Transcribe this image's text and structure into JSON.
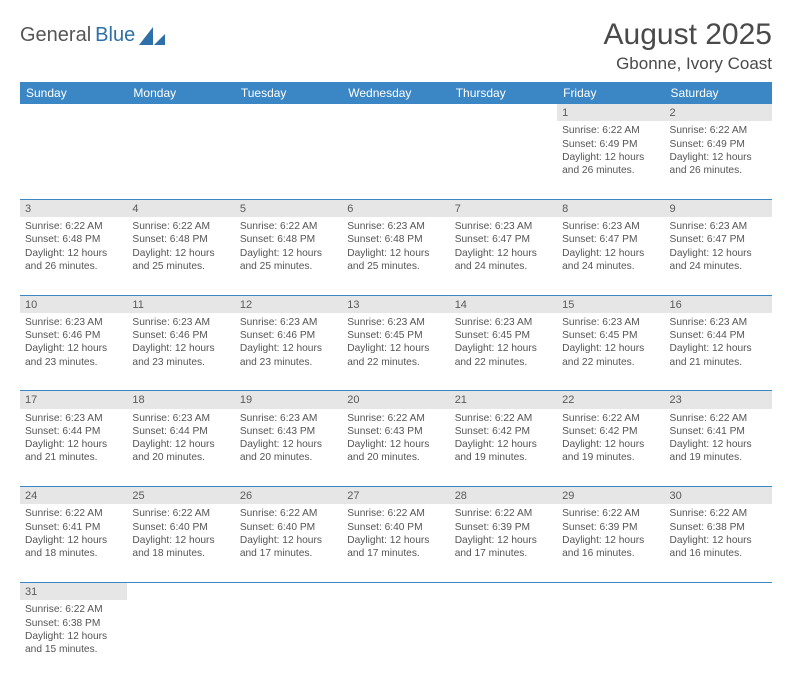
{
  "logo": {
    "part1": "General",
    "part2": "Blue"
  },
  "header": {
    "month_title": "August 2025",
    "location": "Gbonne, Ivory Coast"
  },
  "colors": {
    "header_bg": "#3b86c4",
    "header_text": "#ffffff",
    "daynum_bg": "#e6e6e6",
    "border": "#3b86c4",
    "body_text": "#555555",
    "logo_accent": "#2e6fa8"
  },
  "day_headers": [
    "Sunday",
    "Monday",
    "Tuesday",
    "Wednesday",
    "Thursday",
    "Friday",
    "Saturday"
  ],
  "weeks": [
    {
      "days": [
        null,
        null,
        null,
        null,
        null,
        {
          "n": "1",
          "sunrise": "Sunrise: 6:22 AM",
          "sunset": "Sunset: 6:49 PM",
          "dl1": "Daylight: 12 hours",
          "dl2": "and 26 minutes."
        },
        {
          "n": "2",
          "sunrise": "Sunrise: 6:22 AM",
          "sunset": "Sunset: 6:49 PM",
          "dl1": "Daylight: 12 hours",
          "dl2": "and 26 minutes."
        }
      ]
    },
    {
      "days": [
        {
          "n": "3",
          "sunrise": "Sunrise: 6:22 AM",
          "sunset": "Sunset: 6:48 PM",
          "dl1": "Daylight: 12 hours",
          "dl2": "and 26 minutes."
        },
        {
          "n": "4",
          "sunrise": "Sunrise: 6:22 AM",
          "sunset": "Sunset: 6:48 PM",
          "dl1": "Daylight: 12 hours",
          "dl2": "and 25 minutes."
        },
        {
          "n": "5",
          "sunrise": "Sunrise: 6:22 AM",
          "sunset": "Sunset: 6:48 PM",
          "dl1": "Daylight: 12 hours",
          "dl2": "and 25 minutes."
        },
        {
          "n": "6",
          "sunrise": "Sunrise: 6:23 AM",
          "sunset": "Sunset: 6:48 PM",
          "dl1": "Daylight: 12 hours",
          "dl2": "and 25 minutes."
        },
        {
          "n": "7",
          "sunrise": "Sunrise: 6:23 AM",
          "sunset": "Sunset: 6:47 PM",
          "dl1": "Daylight: 12 hours",
          "dl2": "and 24 minutes."
        },
        {
          "n": "8",
          "sunrise": "Sunrise: 6:23 AM",
          "sunset": "Sunset: 6:47 PM",
          "dl1": "Daylight: 12 hours",
          "dl2": "and 24 minutes."
        },
        {
          "n": "9",
          "sunrise": "Sunrise: 6:23 AM",
          "sunset": "Sunset: 6:47 PM",
          "dl1": "Daylight: 12 hours",
          "dl2": "and 24 minutes."
        }
      ]
    },
    {
      "days": [
        {
          "n": "10",
          "sunrise": "Sunrise: 6:23 AM",
          "sunset": "Sunset: 6:46 PM",
          "dl1": "Daylight: 12 hours",
          "dl2": "and 23 minutes."
        },
        {
          "n": "11",
          "sunrise": "Sunrise: 6:23 AM",
          "sunset": "Sunset: 6:46 PM",
          "dl1": "Daylight: 12 hours",
          "dl2": "and 23 minutes."
        },
        {
          "n": "12",
          "sunrise": "Sunrise: 6:23 AM",
          "sunset": "Sunset: 6:46 PM",
          "dl1": "Daylight: 12 hours",
          "dl2": "and 23 minutes."
        },
        {
          "n": "13",
          "sunrise": "Sunrise: 6:23 AM",
          "sunset": "Sunset: 6:45 PM",
          "dl1": "Daylight: 12 hours",
          "dl2": "and 22 minutes."
        },
        {
          "n": "14",
          "sunrise": "Sunrise: 6:23 AM",
          "sunset": "Sunset: 6:45 PM",
          "dl1": "Daylight: 12 hours",
          "dl2": "and 22 minutes."
        },
        {
          "n": "15",
          "sunrise": "Sunrise: 6:23 AM",
          "sunset": "Sunset: 6:45 PM",
          "dl1": "Daylight: 12 hours",
          "dl2": "and 22 minutes."
        },
        {
          "n": "16",
          "sunrise": "Sunrise: 6:23 AM",
          "sunset": "Sunset: 6:44 PM",
          "dl1": "Daylight: 12 hours",
          "dl2": "and 21 minutes."
        }
      ]
    },
    {
      "days": [
        {
          "n": "17",
          "sunrise": "Sunrise: 6:23 AM",
          "sunset": "Sunset: 6:44 PM",
          "dl1": "Daylight: 12 hours",
          "dl2": "and 21 minutes."
        },
        {
          "n": "18",
          "sunrise": "Sunrise: 6:23 AM",
          "sunset": "Sunset: 6:44 PM",
          "dl1": "Daylight: 12 hours",
          "dl2": "and 20 minutes."
        },
        {
          "n": "19",
          "sunrise": "Sunrise: 6:23 AM",
          "sunset": "Sunset: 6:43 PM",
          "dl1": "Daylight: 12 hours",
          "dl2": "and 20 minutes."
        },
        {
          "n": "20",
          "sunrise": "Sunrise: 6:22 AM",
          "sunset": "Sunset: 6:43 PM",
          "dl1": "Daylight: 12 hours",
          "dl2": "and 20 minutes."
        },
        {
          "n": "21",
          "sunrise": "Sunrise: 6:22 AM",
          "sunset": "Sunset: 6:42 PM",
          "dl1": "Daylight: 12 hours",
          "dl2": "and 19 minutes."
        },
        {
          "n": "22",
          "sunrise": "Sunrise: 6:22 AM",
          "sunset": "Sunset: 6:42 PM",
          "dl1": "Daylight: 12 hours",
          "dl2": "and 19 minutes."
        },
        {
          "n": "23",
          "sunrise": "Sunrise: 6:22 AM",
          "sunset": "Sunset: 6:41 PM",
          "dl1": "Daylight: 12 hours",
          "dl2": "and 19 minutes."
        }
      ]
    },
    {
      "days": [
        {
          "n": "24",
          "sunrise": "Sunrise: 6:22 AM",
          "sunset": "Sunset: 6:41 PM",
          "dl1": "Daylight: 12 hours",
          "dl2": "and 18 minutes."
        },
        {
          "n": "25",
          "sunrise": "Sunrise: 6:22 AM",
          "sunset": "Sunset: 6:40 PM",
          "dl1": "Daylight: 12 hours",
          "dl2": "and 18 minutes."
        },
        {
          "n": "26",
          "sunrise": "Sunrise: 6:22 AM",
          "sunset": "Sunset: 6:40 PM",
          "dl1": "Daylight: 12 hours",
          "dl2": "and 17 minutes."
        },
        {
          "n": "27",
          "sunrise": "Sunrise: 6:22 AM",
          "sunset": "Sunset: 6:40 PM",
          "dl1": "Daylight: 12 hours",
          "dl2": "and 17 minutes."
        },
        {
          "n": "28",
          "sunrise": "Sunrise: 6:22 AM",
          "sunset": "Sunset: 6:39 PM",
          "dl1": "Daylight: 12 hours",
          "dl2": "and 17 minutes."
        },
        {
          "n": "29",
          "sunrise": "Sunrise: 6:22 AM",
          "sunset": "Sunset: 6:39 PM",
          "dl1": "Daylight: 12 hours",
          "dl2": "and 16 minutes."
        },
        {
          "n": "30",
          "sunrise": "Sunrise: 6:22 AM",
          "sunset": "Sunset: 6:38 PM",
          "dl1": "Daylight: 12 hours",
          "dl2": "and 16 minutes."
        }
      ]
    },
    {
      "last": true,
      "days": [
        {
          "n": "31",
          "sunrise": "Sunrise: 6:22 AM",
          "sunset": "Sunset: 6:38 PM",
          "dl1": "Daylight: 12 hours",
          "dl2": "and 15 minutes."
        },
        null,
        null,
        null,
        null,
        null,
        null
      ]
    }
  ]
}
